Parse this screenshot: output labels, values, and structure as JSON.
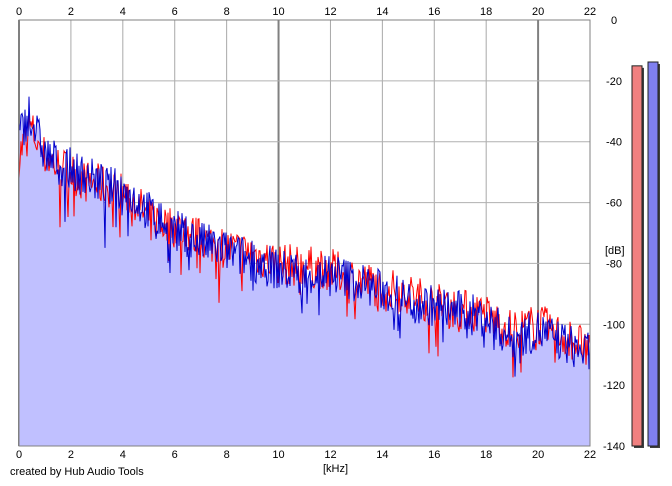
{
  "chart_data": {
    "type": "area",
    "xlabel": "[kHz]",
    "ylabel": "[dB]",
    "xlim": [
      0,
      22
    ],
    "ylim": [
      -140,
      0
    ],
    "x_ticks": [
      "0",
      "2",
      "4",
      "6",
      "8",
      "10",
      "12",
      "14",
      "16",
      "18",
      "20",
      "22"
    ],
    "y_ticks": [
      "0",
      "-20",
      "-40",
      "-60",
      "-80",
      "-100",
      "-120",
      "-140"
    ],
    "grid": true,
    "series": [
      {
        "color": "#ff0000",
        "x": [
          0,
          0.2,
          0.4,
          0.6,
          0.8,
          1,
          1.5,
          2,
          2.5,
          3,
          3.5,
          4,
          4.5,
          5,
          6,
          7,
          8,
          9,
          10,
          11,
          12,
          13,
          14,
          15,
          16,
          17,
          18,
          19,
          20,
          21,
          22
        ],
        "values": [
          -45,
          -40,
          -35,
          -38,
          -42,
          -45,
          -48,
          -50,
          -53,
          -54,
          -55,
          -57,
          -60,
          -65,
          -68,
          -72,
          -75,
          -77,
          -80,
          -81,
          -82,
          -85,
          -88,
          -90,
          -93,
          -95,
          -97,
          -102,
          -100,
          -104,
          -108
        ]
      },
      {
        "color": "#0000cc",
        "x": [
          0,
          0.2,
          0.4,
          0.6,
          0.8,
          1,
          1.5,
          2,
          2.5,
          3,
          3.5,
          4,
          4.5,
          5,
          6,
          7,
          8,
          9,
          10,
          11,
          12,
          13,
          14,
          15,
          16,
          17,
          18,
          19,
          20,
          21,
          22
        ],
        "values": [
          -38,
          -35,
          -30,
          -35,
          -40,
          -44,
          -47,
          -49,
          -51,
          -53,
          -55,
          -56,
          -59,
          -63,
          -69,
          -73,
          -76,
          -79,
          -82,
          -84,
          -83,
          -86,
          -89,
          -92,
          -94,
          -96,
          -98,
          -105,
          -102,
          -106,
          -110
        ]
      }
    ],
    "fill_color": "#c0c0ff",
    "level_meters": [
      {
        "color": "#f08080",
        "level": 0.99
      },
      {
        "color": "#8080f0",
        "level": 1.0
      }
    ]
  },
  "footer": {
    "credit": "created by Hub Audio Tools"
  }
}
